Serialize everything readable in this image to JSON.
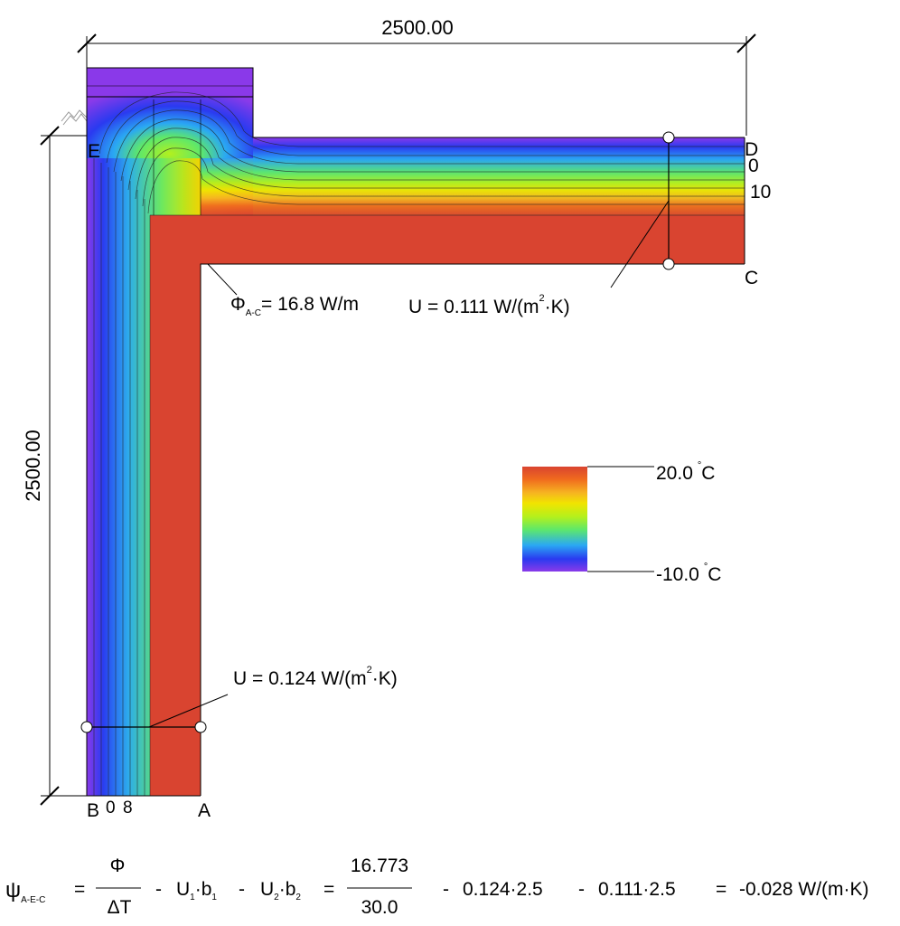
{
  "dimensions": {
    "top": "2500.00",
    "left": "2500.00"
  },
  "points": {
    "A": "A",
    "B": "B",
    "C": "C",
    "D": "D",
    "E": "E"
  },
  "isotherm_labels": {
    "d_low": "0",
    "d_high": "10",
    "b_low": "0",
    "b_high": "8"
  },
  "heat_flow": {
    "symbol": "Φ",
    "subscript": "A-C",
    "value": "= 16.8 W/m"
  },
  "u_roof": {
    "prefix": "U = 0.111 W/(m",
    "exp": "2",
    "suffix": "·K)"
  },
  "u_wall": {
    "prefix": "U = 0.124 W/(m",
    "exp": "2",
    "suffix": "·K)"
  },
  "legend": {
    "max_value": "20.0",
    "min_value": "-10.0",
    "deg": "°",
    "unit": "C",
    "colors": [
      "#d94430",
      "#f06a1e",
      "#f6b421",
      "#f1e400",
      "#b3f01d",
      "#5ee86a",
      "#2aa8f3",
      "#2a3af0",
      "#8a3ae9"
    ]
  },
  "formula": {
    "psi": "ψ",
    "psi_sub": "A-E-C",
    "eq": "=",
    "phi": "Φ",
    "dt": "ΔT",
    "minus": "-",
    "u1": "U",
    "u1_sub": "1",
    "dot": "·",
    "b1": "b",
    "b1_sub": "1",
    "u2": "U",
    "u2_sub": "2",
    "b2": "b",
    "b2_sub": "2",
    "num": "16.773",
    "den": "30.0",
    "term1": "0.124·2.5",
    "term2": "0.111·2.5",
    "result": "-0.028 W/(m·K)"
  }
}
